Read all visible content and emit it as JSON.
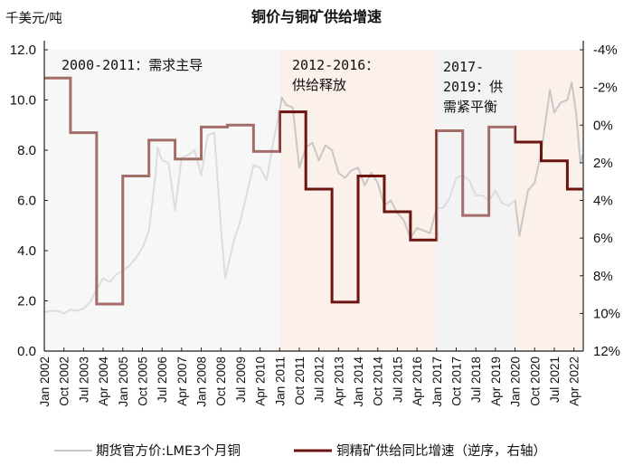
{
  "chart_data": {
    "type": "line",
    "title": "铜价与铜矿供给增速",
    "ylabel_left": "千美元/吨",
    "ylim_left": [
      0,
      12
    ],
    "yticks_left": [
      "0.0",
      "2.0",
      "4.0",
      "6.0",
      "8.0",
      "10.0",
      "12.0"
    ],
    "ylim_right": [
      -4,
      12
    ],
    "right_axis_inverted": true,
    "yticks_right": [
      "-4%",
      "-2%",
      "0%",
      "2%",
      "4%",
      "6%",
      "8%",
      "10%",
      "12%"
    ],
    "xticks": [
      "Jan 2002",
      "Oct 2002",
      "Jul 2003",
      "Apr 2004",
      "Jan 2005",
      "Oct 2005",
      "Jul 2006",
      "Apr 2007",
      "Jan 2008",
      "Oct 2008",
      "Jul 2009",
      "Apr 2010",
      "Jan 2011",
      "Oct 2011",
      "Jul 2012",
      "Apr 2013",
      "Jan 2014",
      "Oct 2014",
      "Jul 2015",
      "Apr 2016",
      "Jan 2017",
      "Oct 2017",
      "Jul 2018",
      "Apr 2019",
      "Jan 2020",
      "Oct 2020",
      "Jul 2021",
      "Apr 2022"
    ],
    "grid": false,
    "legend_position": "bottom",
    "regions": [
      {
        "label": "2000-2011：需求主导",
        "start": "2002-01",
        "end": "2011-01",
        "color": "#f2f2f2"
      },
      {
        "label": "2012-2016：供给释放",
        "start": "2011-01",
        "end": "2017-01",
        "color": "#fbf0ea"
      },
      {
        "label": "2017-2019：供需紧平衡",
        "start": "2017-01",
        "end": "2020-01",
        "color": "#ececec"
      },
      {
        "label": "",
        "start": "2020-01",
        "end": "2022-08",
        "color": "#fbf0ea"
      }
    ],
    "series": [
      {
        "name": "期货官方价:LME3个月铜",
        "axis": "left",
        "color": "#c8c8c8",
        "x": [
          "2002-01",
          "2002-04",
          "2002-07",
          "2002-10",
          "2003-01",
          "2003-04",
          "2003-07",
          "2003-10",
          "2004-01",
          "2004-04",
          "2004-07",
          "2004-10",
          "2005-01",
          "2005-04",
          "2005-07",
          "2005-10",
          "2006-01",
          "2006-04",
          "2006-05",
          "2006-07",
          "2006-10",
          "2007-01",
          "2007-04",
          "2007-07",
          "2007-10",
          "2008-01",
          "2008-04",
          "2008-07",
          "2008-10",
          "2008-12",
          "2009-04",
          "2009-07",
          "2009-10",
          "2010-01",
          "2010-04",
          "2010-07",
          "2010-10",
          "2011-01",
          "2011-02",
          "2011-04",
          "2011-07",
          "2011-10",
          "2012-01",
          "2012-04",
          "2012-07",
          "2012-10",
          "2013-01",
          "2013-04",
          "2013-07",
          "2013-10",
          "2014-01",
          "2014-04",
          "2014-07",
          "2014-10",
          "2015-01",
          "2015-04",
          "2015-07",
          "2015-10",
          "2016-01",
          "2016-04",
          "2016-07",
          "2016-10",
          "2017-01",
          "2017-04",
          "2017-07",
          "2017-10",
          "2018-01",
          "2018-04",
          "2018-07",
          "2018-10",
          "2019-01",
          "2019-04",
          "2019-07",
          "2019-10",
          "2020-01",
          "2020-03",
          "2020-07",
          "2020-10",
          "2021-01",
          "2021-05",
          "2021-07",
          "2021-10",
          "2022-01",
          "2022-03",
          "2022-05",
          "2022-07",
          "2022-08"
        ],
        "values": [
          1.55,
          1.6,
          1.6,
          1.5,
          1.65,
          1.6,
          1.7,
          1.95,
          2.45,
          2.9,
          2.75,
          3.05,
          3.2,
          3.4,
          3.7,
          4.1,
          4.8,
          7.0,
          8.1,
          7.6,
          7.5,
          5.6,
          7.7,
          7.8,
          8.0,
          7.0,
          8.6,
          8.7,
          5.0,
          2.9,
          4.4,
          5.2,
          6.3,
          7.4,
          7.3,
          6.8,
          8.3,
          9.6,
          10.1,
          9.8,
          9.7,
          7.3,
          8.1,
          8.3,
          7.6,
          8.2,
          8.0,
          7.1,
          6.9,
          7.2,
          7.3,
          6.6,
          7.1,
          6.7,
          5.8,
          6.0,
          5.5,
          5.2,
          4.5,
          4.9,
          4.8,
          4.7,
          5.7,
          5.7,
          6.1,
          6.9,
          7.0,
          6.8,
          6.2,
          6.2,
          6.0,
          6.4,
          5.9,
          5.8,
          6.0,
          4.6,
          6.4,
          6.7,
          7.9,
          10.4,
          9.5,
          9.9,
          10.0,
          10.7,
          9.5,
          7.5,
          7.8
        ]
      },
      {
        "name": "铜精矿供给同比增速（逆序，右轴）",
        "axis": "right",
        "color": "#6b1410",
        "step": true,
        "x": [
          "2002-01",
          "2003-01",
          "2004-01",
          "2005-01",
          "2006-01",
          "2007-01",
          "2008-01",
          "2009-01",
          "2010-01",
          "2011-01",
          "2012-01",
          "2013-01",
          "2014-01",
          "2015-01",
          "2016-01",
          "2017-01",
          "2018-01",
          "2019-01",
          "2020-01",
          "2021-01",
          "2022-01"
        ],
        "values": [
          -2.5,
          0.4,
          9.5,
          2.7,
          0.8,
          1.8,
          0.1,
          0.0,
          1.4,
          -0.7,
          3.4,
          9.4,
          2.7,
          4.6,
          6.1,
          0.3,
          4.8,
          0.1,
          0.9,
          1.9,
          3.4
        ],
        "end": "2022-08"
      }
    ]
  }
}
